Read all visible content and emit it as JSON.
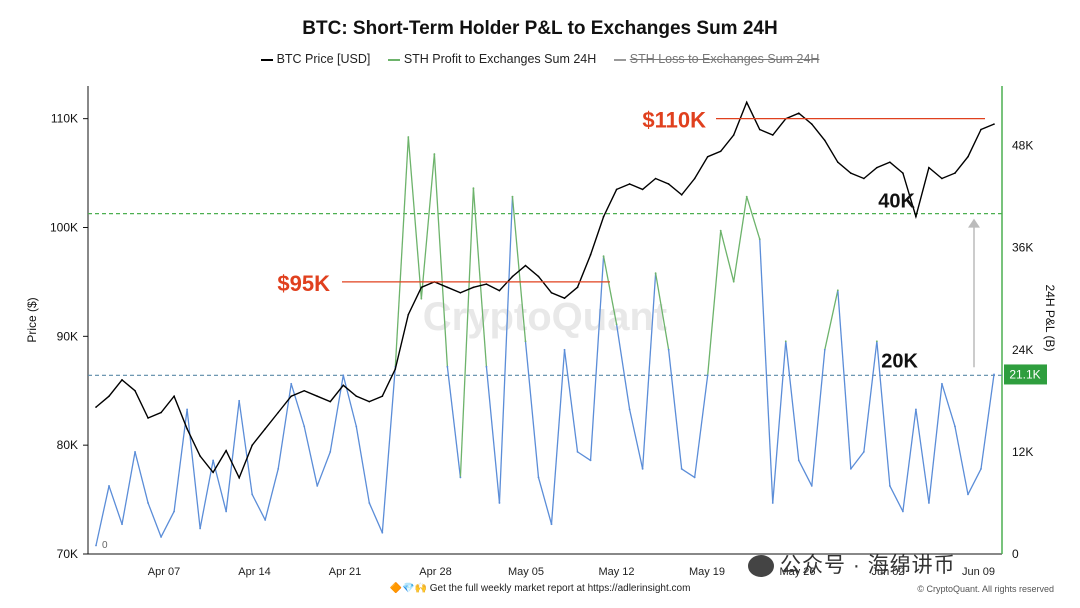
{
  "title": "BTC: Short-Term Holder P&L to Exchanges Sum 24H",
  "legend": [
    {
      "name": "BTC Price [USD]",
      "color": "#000000",
      "struck": false
    },
    {
      "name": "STH Profit to Exchanges Sum 24H",
      "color": "#6db36b",
      "struck": false
    },
    {
      "name": "STH Loss to Exchanges Sum 24H",
      "color": "#888888",
      "struck": true
    }
  ],
  "footer": "🔶💎🙌  Get the full weekly market report at https://adlerinsight.com",
  "copyright": "© CryptoQuant. All rights reserved",
  "watermark": "CryptoQuant",
  "wechat_text": "公众号 · 海绵讲币",
  "chart_data": {
    "type": "line",
    "ylabel": "Price ($)",
    "y2label": "24H P&L (B)",
    "y_ticks": [
      "70K",
      "80K",
      "90K",
      "100K",
      "110K"
    ],
    "ylim": [
      70000,
      113000
    ],
    "y2_ticks": [
      "0",
      "12K",
      "24K",
      "36K",
      "48K"
    ],
    "y2lim": [
      0,
      55000
    ],
    "x_ticks": [
      "Apr 07",
      "Apr 14",
      "Apr 21",
      "Apr 28",
      "May 05",
      "May 12",
      "May 19",
      "May 26",
      "Jun 02",
      "Jun 09"
    ],
    "x_start_label": "0",
    "current_value_badge": "21.1K",
    "annotations": [
      {
        "text": "$110K",
        "color": "#e0401e",
        "level": 110000
      },
      {
        "text": "$95K",
        "color": "#e0401e",
        "level": 95000
      },
      {
        "text": "40K",
        "color": "#111111",
        "level": 40000
      },
      {
        "text": "20K",
        "color": "#111111",
        "level": 21000
      }
    ],
    "series": [
      {
        "name": "BTC Price [USD]",
        "axis": "left",
        "color": "#000000",
        "values": [
          83500,
          84500,
          86000,
          85000,
          82500,
          83000,
          84500,
          81500,
          79000,
          77500,
          79500,
          77000,
          80000,
          81500,
          83000,
          84500,
          85000,
          84500,
          84000,
          85500,
          84500,
          84000,
          84500,
          87000,
          92000,
          94500,
          95000,
          94500,
          94000,
          94500,
          94800,
          94200,
          95500,
          96500,
          95500,
          94000,
          93500,
          94500,
          97500,
          101000,
          103500,
          104000,
          103500,
          104500,
          104000,
          103000,
          104500,
          106500,
          107000,
          108500,
          111500,
          109000,
          108500,
          110000,
          110500,
          109500,
          108000,
          106000,
          105000,
          104500,
          105500,
          106000,
          105000,
          101000,
          105500,
          104500,
          105000,
          106500,
          109000,
          109500
        ]
      },
      {
        "name": "STH Profit to Exchanges Sum 24H",
        "axis": "right",
        "color": "#6db36b",
        "low_color": "#5b8dd8",
        "values": [
          1000,
          8000,
          3500,
          12000,
          6000,
          2000,
          5000,
          17000,
          3000,
          11000,
          5000,
          18000,
          7000,
          4000,
          10000,
          20000,
          15000,
          8000,
          12000,
          21000,
          15000,
          6000,
          2500,
          22000,
          49000,
          30000,
          47000,
          22000,
          9000,
          43000,
          22000,
          6000,
          42000,
          25000,
          9000,
          3500,
          24000,
          12000,
          11000,
          35000,
          27000,
          17000,
          10000,
          33000,
          24000,
          10000,
          9000,
          21000,
          38000,
          32000,
          42000,
          37000,
          6000,
          25000,
          11000,
          8000,
          24000,
          31000,
          10000,
          12000,
          25000,
          8000,
          5000,
          17000,
          6000,
          20000,
          15000,
          7000,
          10000,
          21100
        ]
      }
    ]
  }
}
